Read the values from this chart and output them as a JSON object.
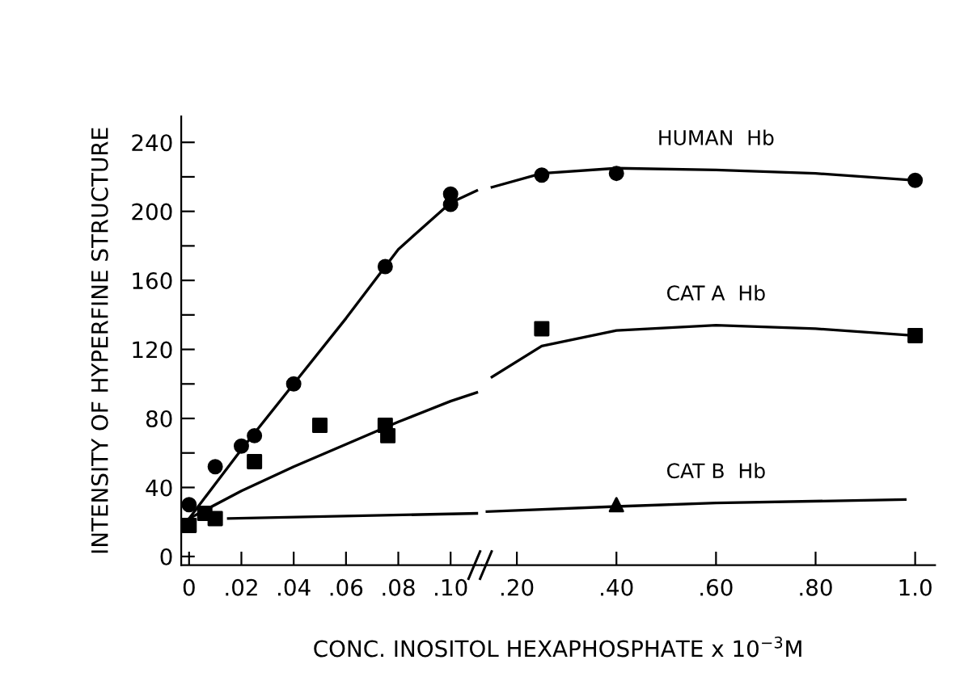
{
  "chart_data": [
    {
      "type": "scatter",
      "ylabel": "INTENSITY OF HYPERFINE STRUCTURE",
      "xlabel": "CONC. INOSITOL HEXAPHOSPHATE x 10$^{−3}$M",
      "xlim": [
        -0.003,
        0.112
      ],
      "ylim": [
        -5,
        255
      ],
      "xticks": [
        0,
        {
          "value": 0.02,
          "label": ".02"
        },
        {
          "value": 0.04,
          "label": ".04"
        },
        {
          "value": 0.06,
          "label": ".06"
        },
        {
          "value": 0.08,
          "label": ".08"
        },
        {
          "value": 0.1,
          "label": ".10"
        }
      ],
      "yticks": [
        0,
        {
          "value": 20,
          "label": null
        },
        40,
        {
          "value": 60,
          "label": null
        },
        80,
        {
          "value": 100,
          "label": null
        },
        120,
        {
          "value": 140,
          "label": null
        },
        160,
        {
          "value": 180,
          "label": null
        },
        200,
        {
          "value": 220,
          "label": null
        },
        240
      ],
      "grid": false,
      "legend": false,
      "series": [
        {
          "marker": "circle",
          "color": "#000000",
          "x": [
            0,
            0.01,
            0.02,
            0.025,
            0.04,
            0.075,
            0.1,
            0.1
          ],
          "values": [
            30,
            52,
            64,
            70,
            100,
            168,
            210,
            204
          ]
        },
        {
          "marker": "square",
          "color": "#000000",
          "x": [
            0,
            0.006,
            0.025,
            0.05,
            0.075,
            0.076
          ],
          "values": [
            18,
            25,
            55,
            76,
            76,
            70
          ]
        },
        {
          "marker": "square",
          "color": "#000000",
          "x": [
            0.01
          ],
          "values": [
            22
          ]
        },
        {
          "type": "line",
          "marker": "none",
          "color": "#000000",
          "x": [
            0,
            0.02,
            0.04,
            0.06,
            0.08,
            0.1,
            0.11
          ],
          "values": [
            22,
            62,
            100,
            138,
            178,
            205,
            212
          ]
        },
        {
          "type": "line",
          "marker": "none",
          "color": "#000000",
          "x": [
            0,
            0.02,
            0.04,
            0.06,
            0.08,
            0.1,
            0.11
          ],
          "values": [
            22,
            38,
            52,
            65,
            78,
            90,
            95
          ]
        },
        {
          "type": "line",
          "marker": "none",
          "color": "#000000",
          "x": [
            0.015,
            0.11
          ],
          "values": [
            22,
            25
          ]
        }
      ]
    },
    {
      "type": "scatter",
      "tick_labels": "x",
      "xlim": [
        0.13,
        1.04
      ],
      "ylim": [
        -5,
        255
      ],
      "xticks": [
        {
          "value": 0.2,
          "label": ".20"
        },
        {
          "value": 0.4,
          "label": ".40"
        },
        {
          "value": 0.6,
          "label": ".60"
        },
        {
          "value": 0.8,
          "label": ".80"
        },
        {
          "value": 1.0,
          "label": "1.0"
        }
      ],
      "grid": false,
      "legend": false,
      "series": [
        {
          "marker": "circle",
          "color": "#000000",
          "x": [
            0.25,
            0.4,
            1.0
          ],
          "values": [
            221,
            222,
            218
          ]
        },
        {
          "marker": "square",
          "color": "#000000",
          "x": [
            0.25,
            1.0
          ],
          "values": [
            132,
            128
          ]
        },
        {
          "marker": "triangle",
          "color": "#000000",
          "x": [
            0.4
          ],
          "values": [
            30
          ]
        },
        {
          "type": "line",
          "name": "HUMAN  Hb",
          "marker": "none",
          "color": "#000000",
          "x": [
            0.15,
            0.25,
            0.4,
            0.6,
            0.8,
            1.0
          ],
          "values": [
            214,
            222,
            225,
            224,
            222,
            218
          ]
        },
        {
          "type": "line",
          "name": "CAT A  Hb",
          "marker": "none",
          "color": "#000000",
          "x": [
            0.15,
            0.25,
            0.4,
            0.6,
            0.8,
            1.0
          ],
          "values": [
            104,
            122,
            131,
            134,
            132,
            128
          ]
        },
        {
          "type": "line",
          "name": "CAT B  Hb",
          "marker": "none",
          "color": "#000000",
          "x": [
            0.14,
            0.4,
            0.6,
            0.98
          ],
          "values": [
            26,
            29,
            31,
            33
          ]
        }
      ]
    }
  ]
}
